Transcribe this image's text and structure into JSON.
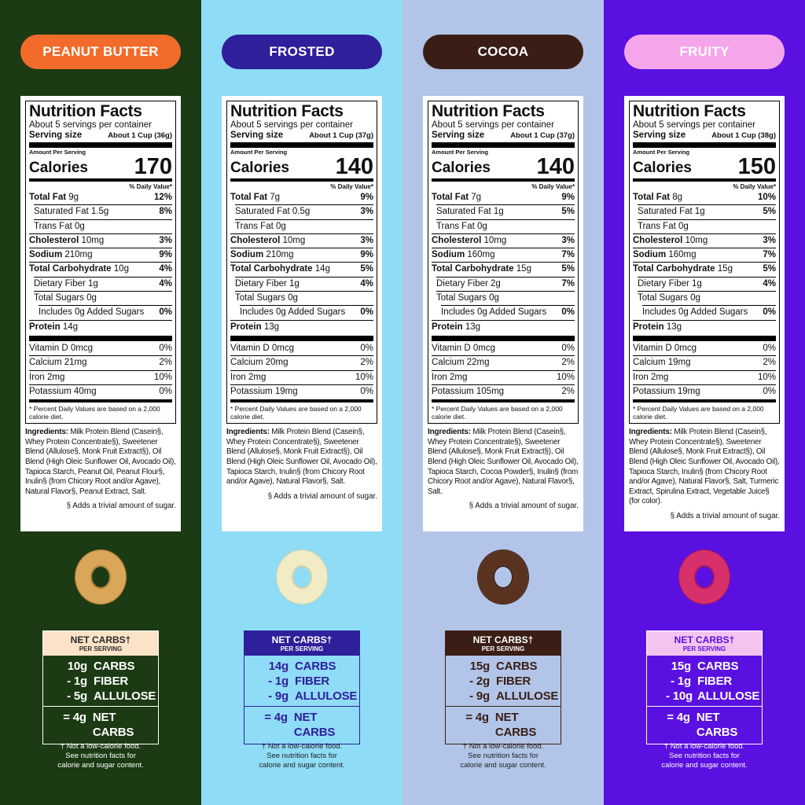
{
  "columns": [
    {
      "flavor": "PEANUT BUTTER",
      "nutrition": {
        "title": "Nutrition Facts",
        "servings": "About 5 servings per container",
        "serving_size_label": "Serving size",
        "serving_size": "About 1 Cup (36g)",
        "amount_per_serving": "Amount Per Serving",
        "calories_label": "Calories",
        "calories": 170,
        "daily_value_header": "% Daily Value*",
        "rows": [
          {
            "name": "Total Fat",
            "amount": "9g",
            "dv": "12%"
          },
          {
            "name": "Saturated Fat",
            "amount": "1.5g",
            "dv": "8%"
          },
          {
            "name": "Trans Fat",
            "amount": "0g"
          },
          {
            "name": "Cholesterol",
            "amount": "10mg",
            "dv": "3%"
          },
          {
            "name": "Sodium",
            "amount": "210mg",
            "dv": "9%"
          },
          {
            "name": "Total Carbohydrate",
            "amount": "10g",
            "dv": "4%"
          },
          {
            "name": "Dietary Fiber",
            "amount": "1g",
            "dv": "4%"
          },
          {
            "name": "Total Sugars",
            "amount": "0g"
          },
          {
            "name": "Includes 0g Added Sugars",
            "dv": "0%"
          },
          {
            "name": "Protein",
            "amount": "14g"
          }
        ],
        "vitamins": [
          {
            "name": "Vitamin D",
            "amount": "0mcg",
            "dv": "0%"
          },
          {
            "name": "Calcium",
            "amount": "21mg",
            "dv": "2%"
          },
          {
            "name": "Iron",
            "amount": "2mg",
            "dv": "10%"
          },
          {
            "name": "Potassium",
            "amount": "40mg",
            "dv": "0%"
          }
        ],
        "footnote": "* Percent Daily Values are based on a 2,000 calorie diet."
      },
      "ingredients": {
        "label": "Ingredients:",
        "text": "Milk Protein Blend (Casein§, Whey Protein Concentrate§), Sweetener Blend (Allulose§, Monk Fruit Extract§), Oil Blend (High Oleic Sunflower Oil, Avocado Oil), Tapioca Starch, Peanut Oil, Peanut Flour§, Inulin§ (from Chicory Root and/or Agave), Natural Flavor§, Peanut Extract, Salt."
      },
      "sugar_note": "§ Adds a trivial amount of sugar.",
      "net_carbs": {
        "title": "NET CARBS†",
        "subtitle": "PER SERVING",
        "lines": [
          {
            "amount": "10g",
            "label": "CARBS"
          },
          {
            "amount": "- 1g",
            "label": "FIBER"
          },
          {
            "amount": "- 5g",
            "label": "ALLULOSE"
          }
        ],
        "result": {
          "amount": "= 4g",
          "label": "NET CARBS"
        }
      },
      "disclaimer": "† Not a low-calorie food. See nutrition facts for calorie and sugar content."
    },
    {
      "flavor": "FROSTED",
      "nutrition": {
        "title": "Nutrition Facts",
        "servings": "About 5 servings per container",
        "serving_size_label": "Serving size",
        "serving_size": "About 1 Cup (37g)",
        "amount_per_serving": "Amount Per Serving",
        "calories_label": "Calories",
        "calories": 140,
        "daily_value_header": "% Daily Value*",
        "rows": [
          {
            "name": "Total Fat",
            "amount": "7g",
            "dv": "9%"
          },
          {
            "name": "Saturated Fat",
            "amount": "0.5g",
            "dv": "3%"
          },
          {
            "name": "Trans Fat",
            "amount": "0g"
          },
          {
            "name": "Cholesterol",
            "amount": "10mg",
            "dv": "3%"
          },
          {
            "name": "Sodium",
            "amount": "210mg",
            "dv": "9%"
          },
          {
            "name": "Total Carbohydrate",
            "amount": "14g",
            "dv": "5%"
          },
          {
            "name": "Dietary Fiber",
            "amount": "1g",
            "dv": "4%"
          },
          {
            "name": "Total Sugars",
            "amount": "0g"
          },
          {
            "name": "Includes 0g Added Sugars",
            "dv": "0%"
          },
          {
            "name": "Protein",
            "amount": "13g"
          }
        ],
        "vitamins": [
          {
            "name": "Vitamin D",
            "amount": "0mcg",
            "dv": "0%"
          },
          {
            "name": "Calcium",
            "amount": "20mg",
            "dv": "2%"
          },
          {
            "name": "Iron",
            "amount": "2mg",
            "dv": "10%"
          },
          {
            "name": "Potassium",
            "amount": "19mg",
            "dv": "0%"
          }
        ],
        "footnote": "* Percent Daily Values are based on a 2,000 calorie diet."
      },
      "ingredients": {
        "label": "Ingredients:",
        "text": "Milk Protein Blend (Casein§, Whey Protein Concentrate§), Sweetener Blend (Allulose§, Monk Fruit Extract§), Oil Blend (High Oleic Sunflower Oil, Avocado Oil), Tapioca Starch, Inulin§ (from Chicory Root and/or Agave), Natural Flavor§, Salt."
      },
      "sugar_note": "§ Adds a trivial amount of sugar.",
      "net_carbs": {
        "title": "NET CARBS†",
        "subtitle": "PER SERVING",
        "lines": [
          {
            "amount": "14g",
            "label": "CARBS"
          },
          {
            "amount": "- 1g",
            "label": "FIBER"
          },
          {
            "amount": "- 9g",
            "label": "ALLULOSE"
          }
        ],
        "result": {
          "amount": "= 4g",
          "label": "NET CARBS"
        }
      },
      "disclaimer": "† Not a low-calorie food. See nutrition facts for calorie and sugar content."
    },
    {
      "flavor": "COCOA",
      "nutrition": {
        "title": "Nutrition Facts",
        "servings": "About 5 servings per container",
        "serving_size_label": "Serving size",
        "serving_size": "About 1 Cup (37g)",
        "amount_per_serving": "Amount Per Serving",
        "calories_label": "Calories",
        "calories": 140,
        "daily_value_header": "% Daily Value*",
        "rows": [
          {
            "name": "Total Fat",
            "amount": "7g",
            "dv": "9%"
          },
          {
            "name": "Saturated Fat",
            "amount": "1g",
            "dv": "5%"
          },
          {
            "name": "Trans Fat",
            "amount": "0g"
          },
          {
            "name": "Cholesterol",
            "amount": "10mg",
            "dv": "3%"
          },
          {
            "name": "Sodium",
            "amount": "160mg",
            "dv": "7%"
          },
          {
            "name": "Total Carbohydrate",
            "amount": "15g",
            "dv": "5%"
          },
          {
            "name": "Dietary Fiber",
            "amount": "2g",
            "dv": "7%"
          },
          {
            "name": "Total Sugars",
            "amount": "0g"
          },
          {
            "name": "Includes 0g Added Sugars",
            "dv": "0%"
          },
          {
            "name": "Protein",
            "amount": "13g"
          }
        ],
        "vitamins": [
          {
            "name": "Vitamin D",
            "amount": "0mcg",
            "dv": "0%"
          },
          {
            "name": "Calcium",
            "amount": "22mg",
            "dv": "2%"
          },
          {
            "name": "Iron",
            "amount": "2mg",
            "dv": "10%"
          },
          {
            "name": "Potassium",
            "amount": "105mg",
            "dv": "2%"
          }
        ],
        "footnote": "* Percent Daily Values are based on a 2,000 calorie diet."
      },
      "ingredients": {
        "label": "Ingredients:",
        "text": "Milk Protein Blend (Casein§, Whey Protein Concentrate§), Sweetener Blend (Allulose§, Monk Fruit Extract§), Oil Blend (High Oleic Sunflower Oil, Avocado Oil), Tapioca Starch, Cocoa Powder§, Inulin§ (from Chicory Root and/or Agave), Natural Flavor§, Salt."
      },
      "sugar_note": "§ Adds a trivial amount of sugar.",
      "net_carbs": {
        "title": "NET CARBS†",
        "subtitle": "PER SERVING",
        "lines": [
          {
            "amount": "15g",
            "label": "CARBS"
          },
          {
            "amount": "- 2g",
            "label": "FIBER"
          },
          {
            "amount": "- 9g",
            "label": "ALLULOSE"
          }
        ],
        "result": {
          "amount": "= 4g",
          "label": "NET CARBS"
        }
      },
      "disclaimer": "† Not a low-calorie food. See nutrition facts for calorie and sugar content."
    },
    {
      "flavor": "FRUITY",
      "nutrition": {
        "title": "Nutrition Facts",
        "servings": "About 5 servings per container",
        "serving_size_label": "Serving size",
        "serving_size": "About 1 Cup (38g)",
        "amount_per_serving": "Amount Per Serving",
        "calories_label": "Calories",
        "calories": 150,
        "daily_value_header": "% Daily Value*",
        "rows": [
          {
            "name": "Total Fat",
            "amount": "8g",
            "dv": "10%"
          },
          {
            "name": "Saturated Fat",
            "amount": "1g",
            "dv": "5%"
          },
          {
            "name": "Trans Fat",
            "amount": "0g"
          },
          {
            "name": "Cholesterol",
            "amount": "10mg",
            "dv": "3%"
          },
          {
            "name": "Sodium",
            "amount": "160mg",
            "dv": "7%"
          },
          {
            "name": "Total Carbohydrate",
            "amount": "15g",
            "dv": "5%"
          },
          {
            "name": "Dietary Fiber",
            "amount": "1g",
            "dv": "4%"
          },
          {
            "name": "Total Sugars",
            "amount": "0g"
          },
          {
            "name": "Includes 0g Added Sugars",
            "dv": "0%"
          },
          {
            "name": "Protein",
            "amount": "13g"
          }
        ],
        "vitamins": [
          {
            "name": "Vitamin D",
            "amount": "0mcg",
            "dv": "0%"
          },
          {
            "name": "Calcium",
            "amount": "19mg",
            "dv": "2%"
          },
          {
            "name": "Iron",
            "amount": "2mg",
            "dv": "10%"
          },
          {
            "name": "Potassium",
            "amount": "19mg",
            "dv": "0%"
          }
        ],
        "footnote": "* Percent Daily Values are based on a 2,000 calorie diet."
      },
      "ingredients": {
        "label": "Ingredients:",
        "text": "Milk Protein Blend (Casein§, Whey Protein Concentrate§), Sweetener Blend (Allulose§, Monk Fruit Extract§), Oil Blend (High Oleic Sunflower Oil, Avocado Oil), Tapioca Starch, Inulin§ (from Chicory Root and/or Agave), Natural Flavor§, Salt, Turmeric Extract, Spirulina Extract, Vegetable Juice§ (for color)."
      },
      "sugar_note": "§ Adds a trivial amount of sugar.",
      "net_carbs": {
        "title": "NET CARBS†",
        "subtitle": "PER SERVING",
        "lines": [
          {
            "amount": "15g",
            "label": "CARBS"
          },
          {
            "amount": "- 1g",
            "label": "FIBER"
          },
          {
            "amount": "- 10g",
            "label": "ALLULOSE"
          }
        ],
        "result": {
          "amount": "= 4g",
          "label": "NET CARBS"
        }
      },
      "disclaimer": "† Not a low-calorie food. See nutrition facts for calorie and sugar content."
    }
  ]
}
